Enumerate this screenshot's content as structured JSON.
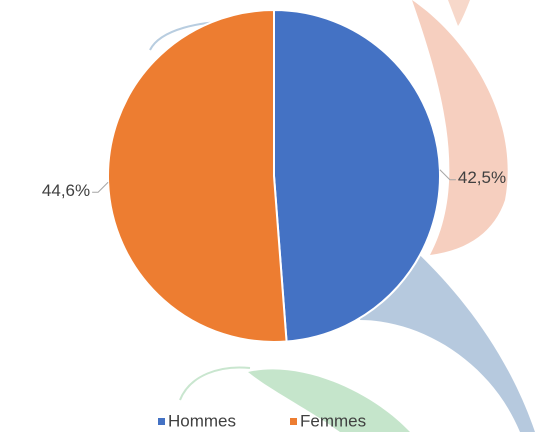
{
  "chart_data": {
    "type": "pie",
    "categories": [
      "Hommes",
      "Femmes"
    ],
    "values": [
      42.5,
      44.6
    ],
    "value_labels": [
      "42,5%",
      "44,6%"
    ],
    "colors": [
      "#4472c4",
      "#ed7d31"
    ],
    "legend": "bottom"
  }
}
